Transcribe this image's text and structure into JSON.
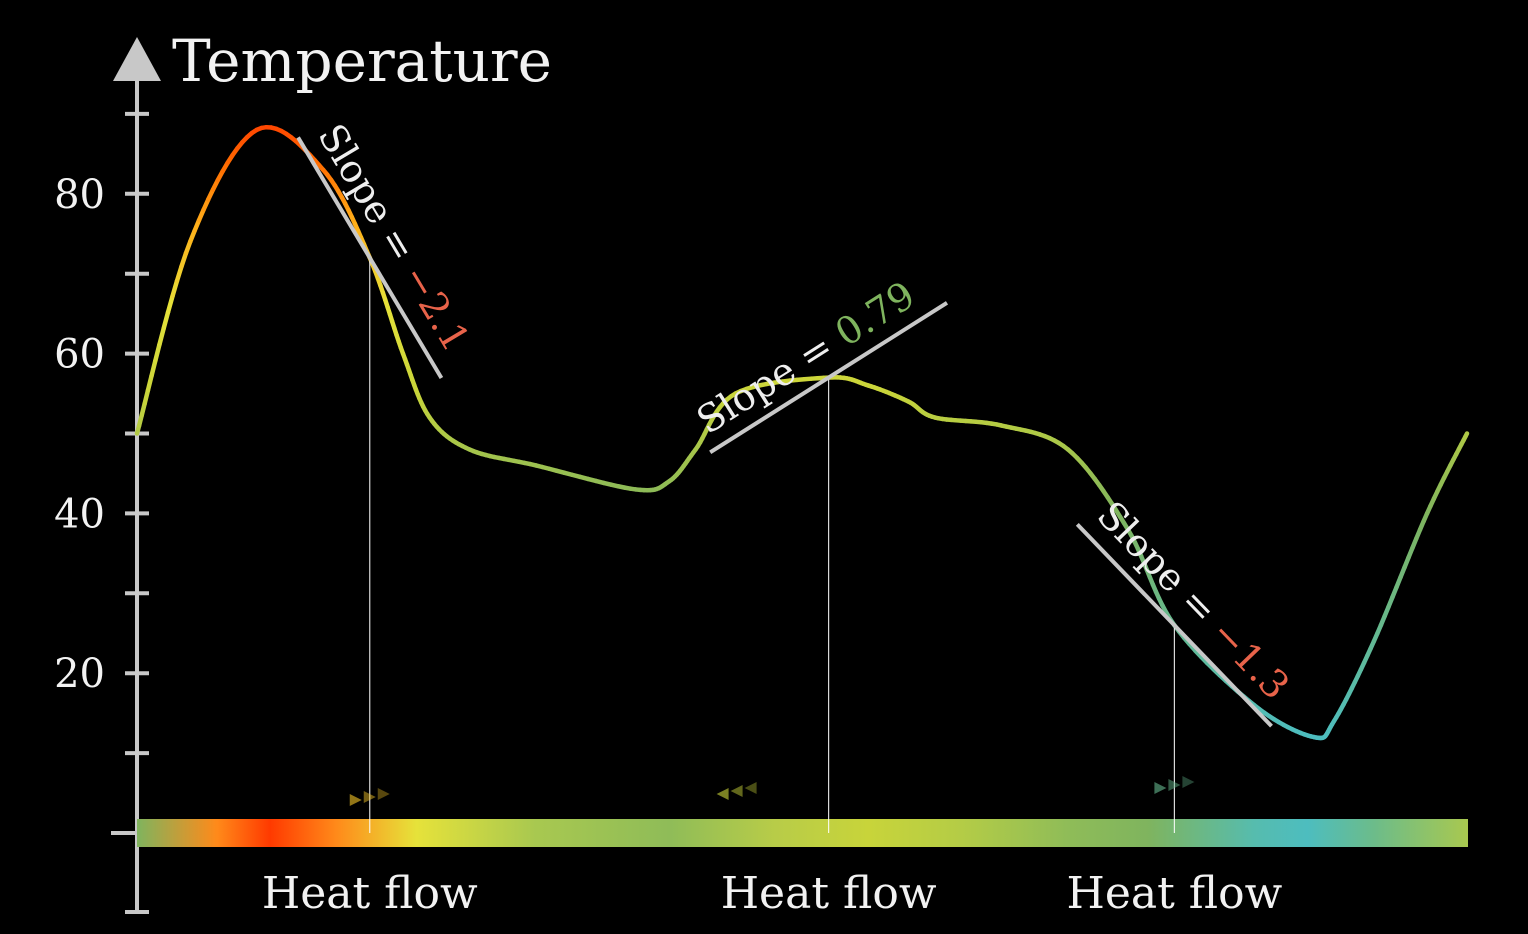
{
  "colors": {
    "background": "#000000",
    "axis": "#c8c8c8",
    "tangent": "#c8c8c8",
    "negative_slope": "#e8634a",
    "positive_slope": "#7fb45e",
    "curve_gradient": [
      "#4dbdbf",
      "#7fb45e",
      "#c8d43a",
      "#e6e23a",
      "#ffb01a",
      "#ff6a00",
      "#ff3a00"
    ]
  },
  "chart_data": {
    "type": "line",
    "title": "",
    "ylabel": "Temperature",
    "xlabel": "",
    "ylim": [
      0,
      100
    ],
    "xlim": [
      0,
      1
    ],
    "yticks": [
      20,
      40,
      60,
      80
    ],
    "grid": false,
    "legend": "none",
    "x": [
      0.0,
      0.04,
      0.09,
      0.14,
      0.175,
      0.2,
      0.22,
      0.25,
      0.3,
      0.375,
      0.4,
      0.42,
      0.45,
      0.52,
      0.55,
      0.58,
      0.6,
      0.65,
      0.7,
      0.745,
      0.78,
      0.84,
      0.885,
      0.9,
      0.93,
      0.97,
      1.0
    ],
    "series": [
      {
        "values": [
          50,
          74,
          88,
          83,
          72,
          60,
          52,
          48,
          46,
          43,
          44,
          48,
          55,
          57,
          56,
          54,
          52,
          51,
          48,
          38,
          26,
          16,
          12,
          14,
          24,
          40,
          50
        ]
      }
    ],
    "tangents": [
      {
        "x": 0.175,
        "slope_label": "Slope = ",
        "slope_value": "−2.1",
        "sign": "negative"
      },
      {
        "x": 0.52,
        "slope_label": "Slope = ",
        "slope_value": "0.79",
        "sign": "positive"
      },
      {
        "x": 0.78,
        "slope_label": "Slope = ",
        "slope_value": "−1.3",
        "sign": "negative"
      }
    ],
    "flow_labels": [
      "Heat flow",
      "Heat flow",
      "Heat flow"
    ]
  }
}
